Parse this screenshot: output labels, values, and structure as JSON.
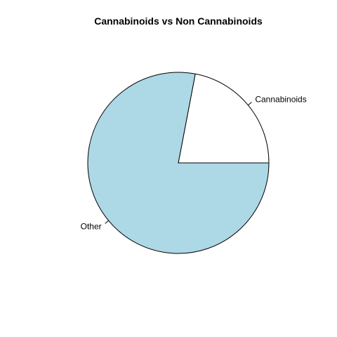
{
  "chart_data": {
    "type": "pie",
    "title": "Cannabinoids vs Non Cannabinoids",
    "categories": [
      "Cannabinoids",
      "Other"
    ],
    "values": [
      22,
      78
    ],
    "colors": [
      "#ffffff",
      "#add8e6"
    ],
    "start_angle_deg": 0,
    "direction": "counterclockwise",
    "border_color": "#000000",
    "legend": "none"
  }
}
